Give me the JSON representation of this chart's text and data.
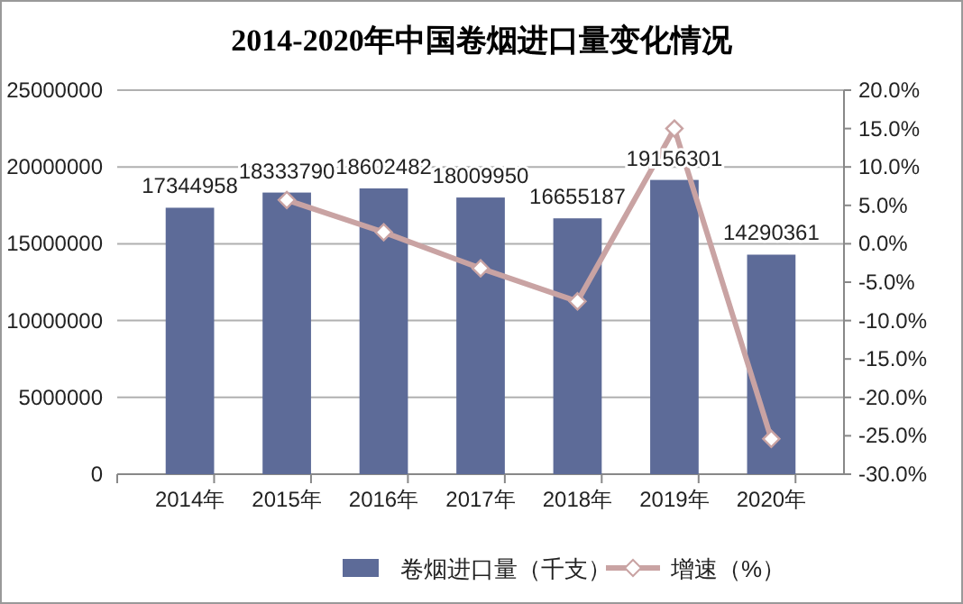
{
  "chart_data": {
    "type": "bar",
    "title": "2014-2020年中国卷烟进口量变化情况",
    "categories": [
      "2014年",
      "2015年",
      "2016年",
      "2017年",
      "2018年",
      "2019年",
      "2020年"
    ],
    "series": [
      {
        "name": "卷烟进口量（千支）",
        "color": "#5d6b98",
        "values": [
          17344958,
          18333790,
          18602482,
          18009950,
          16655187,
          19156301,
          14290361
        ],
        "value_labels": [
          "17344958",
          "18333790",
          "18602482",
          "18009950",
          "16655187",
          "19156301",
          "14290361"
        ]
      },
      {
        "name": "增速（%）",
        "type": "line",
        "axis": "y2",
        "color": "#c9a3a3",
        "marker": "diamond",
        "values": [
          null,
          5.7,
          1.5,
          -3.2,
          -7.5,
          15.0,
          -25.4
        ]
      }
    ],
    "ylim": [
      0,
      25000000
    ],
    "yticks": [
      0,
      5000000,
      10000000,
      15000000,
      20000000,
      25000000
    ],
    "y2lim": [
      -30,
      20
    ],
    "y2ticks": [
      {
        "value": -30,
        "label": "-30.0%"
      },
      {
        "value": -25,
        "label": "-25.0%"
      },
      {
        "value": -20,
        "label": "-20.0%"
      },
      {
        "value": -15,
        "label": "-15.0%"
      },
      {
        "value": -10,
        "label": "-10.0%"
      },
      {
        "value": -5,
        "label": "-5.0%"
      },
      {
        "value": 0,
        "label": "0.0%"
      },
      {
        "value": 5,
        "label": "5.0%"
      },
      {
        "value": 10,
        "label": "10.0%"
      },
      {
        "value": 15,
        "label": "15.0%"
      },
      {
        "value": 20,
        "label": "20.0%"
      }
    ],
    "grid": "y",
    "legend": "bottom"
  }
}
